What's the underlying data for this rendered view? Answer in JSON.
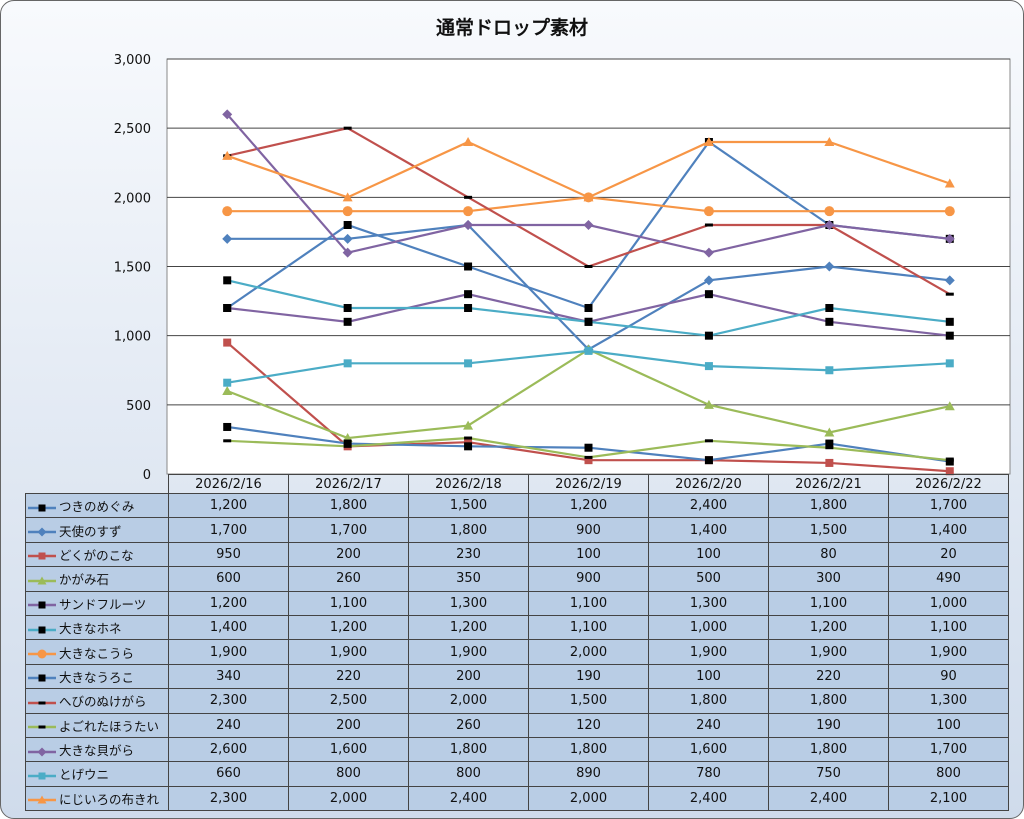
{
  "chart_data": {
    "type": "line",
    "title": "通常ドロップ素材",
    "xlabel": "",
    "ylabel": "",
    "ylim": [
      0,
      3000
    ],
    "y_ticks": [
      "0",
      "500",
      "1,000",
      "1,500",
      "2,000",
      "2,500",
      "3,000"
    ],
    "grid": true,
    "legend": "data-table-left",
    "categories": [
      "2026/2/16",
      "2026/2/17",
      "2026/2/18",
      "2026/2/19",
      "2026/2/20",
      "2026/2/21",
      "2026/2/22"
    ],
    "series": [
      {
        "name": "つきのめぐみ",
        "values": [
          1200,
          1800,
          1500,
          1200,
          2400,
          1800,
          1700
        ],
        "labels": [
          "1,200",
          "1,800",
          "1,500",
          "1,200",
          "2,400",
          "1,800",
          "1,700"
        ],
        "color": "#4F81BD",
        "marker": "square-black"
      },
      {
        "name": "天使のすず",
        "values": [
          1700,
          1700,
          1800,
          900,
          1400,
          1500,
          1400
        ],
        "labels": [
          "1,700",
          "1,700",
          "1,800",
          "900",
          "1,400",
          "1,500",
          "1,400"
        ],
        "color": "#4F81BD",
        "marker": "diamond"
      },
      {
        "name": "どくがのこな",
        "values": [
          950,
          200,
          230,
          100,
          100,
          80,
          20
        ],
        "labels": [
          "950",
          "200",
          "230",
          "100",
          "100",
          "80",
          "20"
        ],
        "color": "#C0504D",
        "marker": "square"
      },
      {
        "name": "かがみ石",
        "values": [
          600,
          260,
          350,
          900,
          500,
          300,
          490
        ],
        "labels": [
          "600",
          "260",
          "350",
          "900",
          "500",
          "300",
          "490"
        ],
        "color": "#9BBB59",
        "marker": "triangle"
      },
      {
        "name": "サンドフルーツ",
        "values": [
          1200,
          1100,
          1300,
          1100,
          1300,
          1100,
          1000
        ],
        "labels": [
          "1,200",
          "1,100",
          "1,300",
          "1,100",
          "1,300",
          "1,100",
          "1,000"
        ],
        "color": "#8064A2",
        "marker": "square-black"
      },
      {
        "name": "大きなホネ",
        "values": [
          1400,
          1200,
          1200,
          1100,
          1000,
          1200,
          1100
        ],
        "labels": [
          "1,400",
          "1,200",
          "1,200",
          "1,100",
          "1,000",
          "1,200",
          "1,100"
        ],
        "color": "#4BACC6",
        "marker": "square-black"
      },
      {
        "name": "大きなこうら",
        "values": [
          1900,
          1900,
          1900,
          2000,
          1900,
          1900,
          1900
        ],
        "labels": [
          "1,900",
          "1,900",
          "1,900",
          "2,000",
          "1,900",
          "1,900",
          "1,900"
        ],
        "color": "#F79646",
        "marker": "circle"
      },
      {
        "name": "大きなうろこ",
        "values": [
          340,
          220,
          200,
          190,
          100,
          220,
          90
        ],
        "labels": [
          "340",
          "220",
          "200",
          "190",
          "100",
          "220",
          "90"
        ],
        "color": "#4F81BD",
        "marker": "square-black"
      },
      {
        "name": "へびのぬけがら",
        "values": [
          2300,
          2500,
          2000,
          1500,
          1800,
          1800,
          1300
        ],
        "labels": [
          "2,300",
          "2,500",
          "2,000",
          "1,500",
          "1,800",
          "1,800",
          "1,300"
        ],
        "color": "#C0504D",
        "marker": "dash-black"
      },
      {
        "name": "よごれたほうたい",
        "values": [
          240,
          200,
          260,
          120,
          240,
          190,
          100
        ],
        "labels": [
          "240",
          "200",
          "260",
          "120",
          "240",
          "190",
          "100"
        ],
        "color": "#9BBB59",
        "marker": "dash-black"
      },
      {
        "name": "大きな貝がら",
        "values": [
          2600,
          1600,
          1800,
          1800,
          1600,
          1800,
          1700
        ],
        "labels": [
          "2,600",
          "1,600",
          "1,800",
          "1,800",
          "1,600",
          "1,800",
          "1,700"
        ],
        "color": "#8064A2",
        "marker": "diamond"
      },
      {
        "name": "とげウニ",
        "values": [
          660,
          800,
          800,
          890,
          780,
          750,
          800
        ],
        "labels": [
          "660",
          "800",
          "800",
          "890",
          "780",
          "750",
          "800"
        ],
        "color": "#4BACC6",
        "marker": "square"
      },
      {
        "name": "にじいろの布きれ",
        "values": [
          2300,
          2000,
          2400,
          2000,
          2400,
          2400,
          2100
        ],
        "labels": [
          "2,300",
          "2,000",
          "2,400",
          "2,000",
          "2,400",
          "2,400",
          "2,100"
        ],
        "color": "#F79646",
        "marker": "triangle"
      }
    ]
  }
}
